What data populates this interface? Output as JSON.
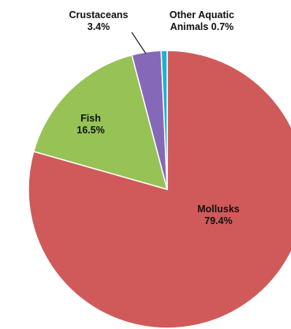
{
  "chart_data": {
    "type": "pie",
    "slices": [
      {
        "label": "Mollusks",
        "value": 79.4,
        "value_label": "79.4%",
        "color": "#d05a5a"
      },
      {
        "label": "Fish",
        "value": 16.5,
        "value_label": "16.5%",
        "color": "#96c256"
      },
      {
        "label": "Crustaceans",
        "value": 3.4,
        "value_label": "3.4%",
        "color": "#8668b8"
      },
      {
        "label": "Other Aquatic Animals",
        "value": 0.7,
        "value_label": "Animals 0.7%",
        "label_line1": "Other Aquatic",
        "color": "#1fb0d4"
      }
    ],
    "title": "",
    "legend": "none",
    "labels": "on-chart"
  }
}
